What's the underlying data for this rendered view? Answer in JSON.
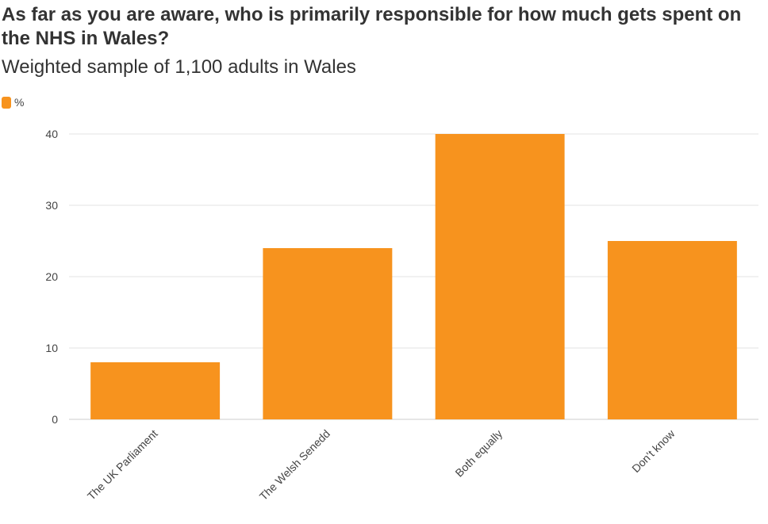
{
  "title": "As far as you are aware, who is primarily responsible for how much gets spent on the NHS in Wales?",
  "subtitle": "Weighted sample of 1,100 adults in Wales",
  "colors": {
    "bar": "#f7931e",
    "grid": "#e3e3e3",
    "axis": "#cccccc"
  },
  "chart_data": {
    "type": "bar",
    "title": "As far as you are aware, who is primarily responsible for how much gets spent on the NHS in Wales?",
    "subtitle": "Weighted sample of 1,100 adults in Wales",
    "categories": [
      "The UK Parliament",
      "The Welsh Senedd",
      "Both equally",
      "Don’t know"
    ],
    "series": [
      {
        "name": "%",
        "values": [
          8,
          24,
          40,
          25
        ]
      }
    ],
    "xlabel": "",
    "ylabel": "",
    "ylim": [
      0,
      40
    ],
    "yticks": [
      0,
      10,
      20,
      30,
      40
    ],
    "grid": true,
    "legend_position": "top-left"
  }
}
